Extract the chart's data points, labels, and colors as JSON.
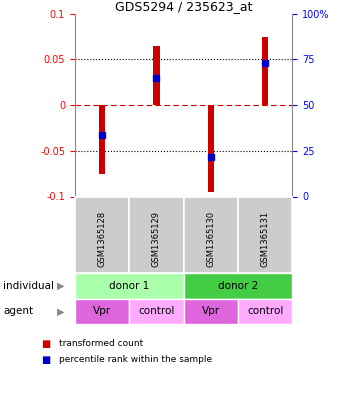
{
  "title": "GDS5294 / 235623_at",
  "samples": [
    "GSM1365128",
    "GSM1365129",
    "GSM1365130",
    "GSM1365131"
  ],
  "bar_values": [
    -0.075,
    0.065,
    -0.095,
    0.075
  ],
  "percentile_values": [
    -0.033,
    0.03,
    -0.057,
    0.046
  ],
  "yticks": [
    -0.1,
    -0.05,
    0.0,
    0.05,
    0.1
  ],
  "ytick_labels": [
    "-0.1",
    "-0.05",
    "0",
    "0.05",
    "0.1"
  ],
  "y2_ticks": [
    0,
    25,
    50,
    75,
    100
  ],
  "y2_tick_positions": [
    -0.1,
    -0.05,
    0.0,
    0.05,
    0.1
  ],
  "y2_tick_labels": [
    "0",
    "25",
    "50",
    "75",
    "100%"
  ],
  "dotted_lines": [
    -0.05,
    0.05
  ],
  "zero_line": 0.0,
  "donors": [
    {
      "label": "donor 1",
      "cols": [
        0,
        1
      ],
      "color": "#aaffaa"
    },
    {
      "label": "donor 2",
      "cols": [
        2,
        3
      ],
      "color": "#44cc44"
    }
  ],
  "agents": [
    {
      "label": "Vpr",
      "col": 0,
      "color": "#dd66dd"
    },
    {
      "label": "control",
      "col": 1,
      "color": "#ffaaff"
    },
    {
      "label": "Vpr",
      "col": 2,
      "color": "#dd66dd"
    },
    {
      "label": "control",
      "col": 3,
      "color": "#ffaaff"
    }
  ],
  "bar_color": "#cc0000",
  "percentile_color": "#0000cc",
  "bar_width": 0.12,
  "ylim": [
    -0.1,
    0.1
  ],
  "sample_bg": "#cccccc",
  "individual_label": "individual",
  "agent_label": "agent",
  "legend": [
    {
      "color": "#cc0000",
      "label": "transformed count"
    },
    {
      "color": "#0000cc",
      "label": "percentile rank within the sample"
    }
  ],
  "title_fontsize": 9,
  "tick_fontsize": 7,
  "label_fontsize": 7.5
}
